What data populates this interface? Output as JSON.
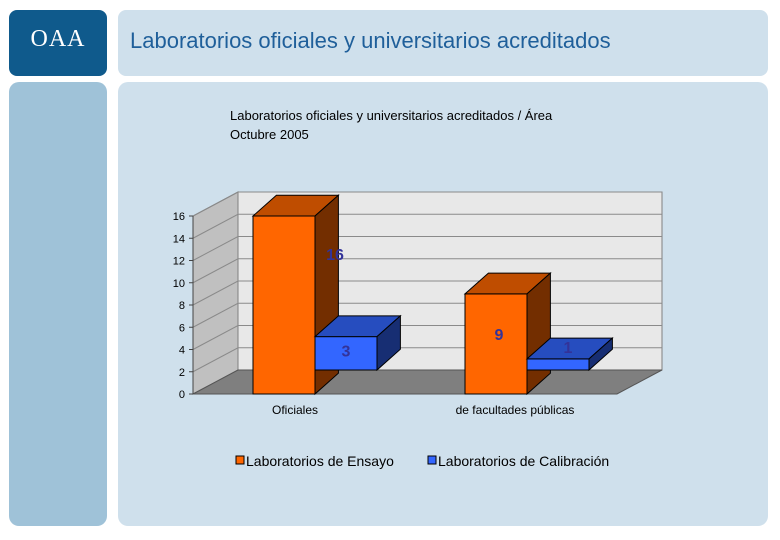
{
  "logo": {
    "text": "OAA",
    "color": "#0f5a8c"
  },
  "header": {
    "title": "Laboratorios oficiales y universitarios acreditados"
  },
  "chart_data": {
    "type": "bar",
    "title_line1": "Laboratorios oficiales y universitarios acreditados / Área",
    "title_line2": "Octubre 2005",
    "categories": [
      "Oficiales",
      "de facultades públicas"
    ],
    "series": [
      {
        "name": "Laboratorios de Ensayo",
        "values": [
          16,
          9
        ],
        "color": "#ff6600"
      },
      {
        "name": "Laboratorios de Calibración",
        "values": [
          3,
          1
        ],
        "color": "#3366ff"
      }
    ],
    "y_ticks": [
      "0",
      "2",
      "4",
      "6",
      "8",
      "10",
      "12",
      "14",
      "16"
    ],
    "ylim": [
      0,
      16
    ],
    "grid": true,
    "legend_position": "bottom",
    "style": "3d-column"
  }
}
